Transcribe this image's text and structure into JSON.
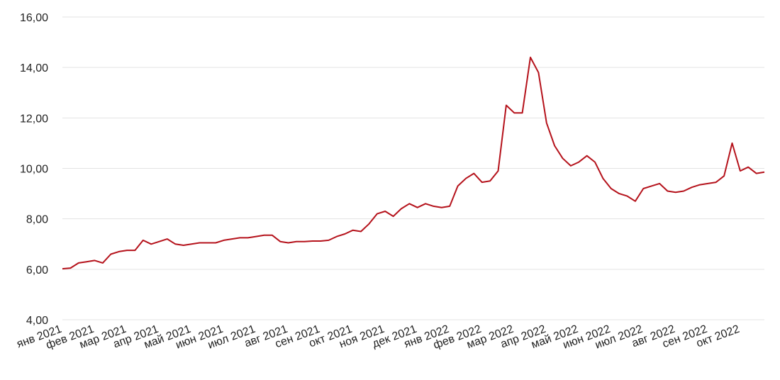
{
  "chart_data": {
    "type": "line",
    "categories": [
      "янв 2021",
      null,
      null,
      null,
      "фев 2021",
      null,
      null,
      null,
      "мар 2021",
      null,
      null,
      null,
      "апр 2021",
      null,
      null,
      null,
      "май 2021",
      null,
      null,
      null,
      "июн 2021",
      null,
      null,
      null,
      "июл 2021",
      null,
      null,
      null,
      "авг 2021",
      null,
      null,
      null,
      "сен 2021",
      null,
      null,
      null,
      "окт 2021",
      null,
      null,
      null,
      "ноя 2021",
      null,
      null,
      null,
      "дек 2021",
      null,
      null,
      null,
      "янв 2022",
      null,
      null,
      null,
      "фев 2022",
      null,
      null,
      null,
      "мар 2022",
      null,
      null,
      null,
      "апр 2022",
      null,
      null,
      null,
      "май 2022",
      null,
      null,
      null,
      "июн 2022",
      null,
      null,
      null,
      "июл 2022",
      null,
      null,
      null,
      "авг 2022",
      null,
      null,
      null,
      "сен 2022",
      null,
      null,
      null,
      "окт 2022",
      null,
      null,
      null
    ],
    "series": [
      {
        "color": "#b5121b",
        "values": [
          6.02,
          6.05,
          6.25,
          6.3,
          6.35,
          6.25,
          6.6,
          6.7,
          6.75,
          6.75,
          7.15,
          7.0,
          7.1,
          7.2,
          7.0,
          6.95,
          7.0,
          7.05,
          7.05,
          7.05,
          7.15,
          7.2,
          7.25,
          7.25,
          7.3,
          7.35,
          7.35,
          7.1,
          7.05,
          7.1,
          7.1,
          7.12,
          7.12,
          7.15,
          7.3,
          7.4,
          7.55,
          7.5,
          7.8,
          8.2,
          8.3,
          8.1,
          8.4,
          8.6,
          8.45,
          8.6,
          8.5,
          8.45,
          8.5,
          9.3,
          9.6,
          9.8,
          9.45,
          9.5,
          9.9,
          12.5,
          12.2,
          12.2,
          14.4,
          13.8,
          11.8,
          10.9,
          10.4,
          10.1,
          10.25,
          10.5,
          10.25,
          9.6,
          9.2,
          9.0,
          8.9,
          8.7,
          9.2,
          9.3,
          9.4,
          9.1,
          9.05,
          9.1,
          9.25,
          9.35,
          9.4,
          9.45,
          9.7,
          11.0,
          9.9,
          10.05,
          9.8,
          9.85
        ]
      }
    ],
    "ylim": [
      4,
      16
    ],
    "yticks": [
      {
        "value": 4,
        "label": "4,00"
      },
      {
        "value": 6,
        "label": "6,00"
      },
      {
        "value": 8,
        "label": "8,00"
      },
      {
        "value": 10,
        "label": "10,00"
      },
      {
        "value": 12,
        "label": "12,00"
      },
      {
        "value": 14,
        "label": "14,00"
      },
      {
        "value": 16,
        "label": "16,00"
      }
    ],
    "grid": true
  }
}
